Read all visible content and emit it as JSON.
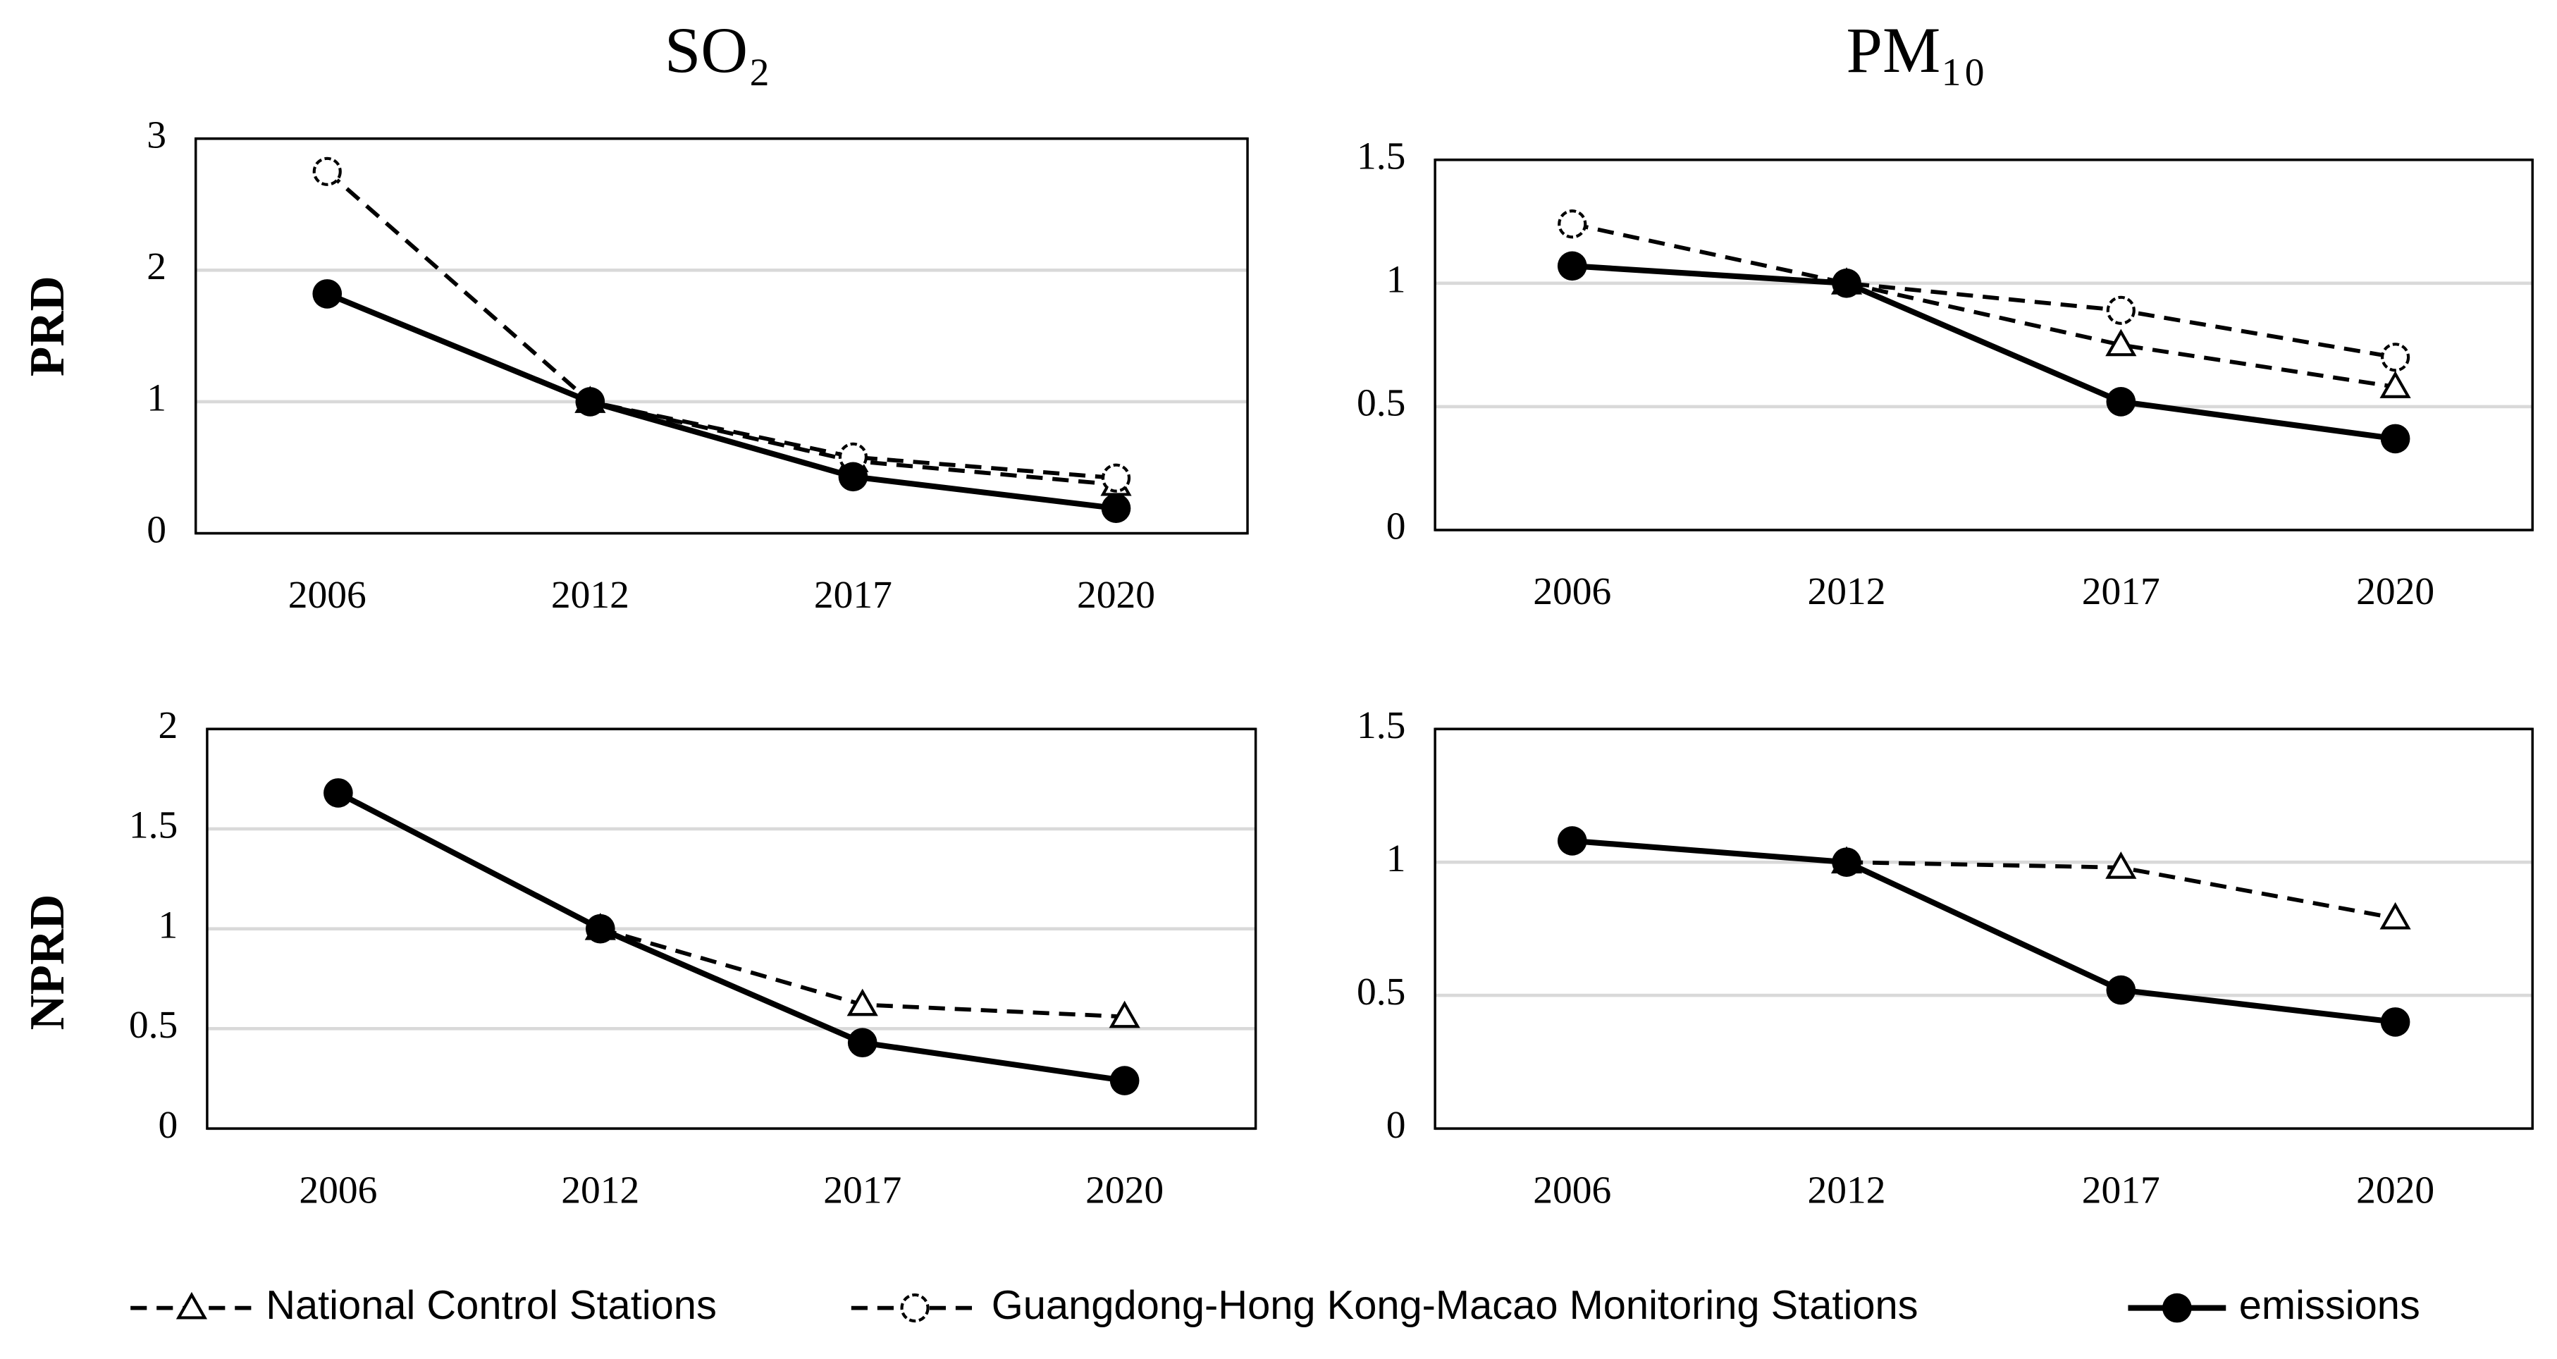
{
  "panel_titles": [
    "SO₂",
    "PM₁₀"
  ],
  "row_labels": [
    "PRD",
    "NPRD"
  ],
  "chart_data": [
    {
      "type": "line",
      "categories": [
        "2006",
        "2012",
        "2017",
        "2020"
      ],
      "ylim": [
        0,
        3
      ],
      "yticks": [
        0,
        1,
        2,
        3
      ],
      "grid": true,
      "series": [
        {
          "name": "National Control Stations",
          "color": "#000000",
          "dashed": true,
          "marker": "triangle",
          "values": [
            null,
            1,
            0.55,
            0.37
          ]
        },
        {
          "name": "Guangdong-Hong Kong-Macao Monitoring Stations",
          "color": "#000000",
          "dashed": true,
          "marker": "open-circle",
          "values": [
            2.75,
            1,
            0.58,
            0.42
          ]
        },
        {
          "name": "emissions",
          "color": "#000000",
          "dashed": false,
          "marker": "filled-circle",
          "values": [
            1.82,
            1,
            0.43,
            0.19
          ]
        }
      ]
    },
    {
      "type": "line",
      "categories": [
        "2006",
        "2012",
        "2017",
        "2020"
      ],
      "ylim": [
        0,
        1.5
      ],
      "yticks": [
        0,
        0.5,
        1,
        1.5
      ],
      "grid": true,
      "series": [
        {
          "name": "National Control Stations",
          "color": "#000000",
          "dashed": true,
          "marker": "triangle",
          "values": [
            null,
            1,
            0.75,
            0.58
          ]
        },
        {
          "name": "Guangdong-Hong Kong-Macao Monitoring Stations",
          "color": "#000000",
          "dashed": true,
          "marker": "open-circle",
          "values": [
            1.24,
            1,
            0.89,
            0.7
          ]
        },
        {
          "name": "emissions",
          "color": "#000000",
          "dashed": false,
          "marker": "filled-circle",
          "values": [
            1.07,
            1,
            0.52,
            0.37
          ]
        }
      ]
    },
    {
      "type": "line",
      "categories": [
        "2006",
        "2012",
        "2017",
        "2020"
      ],
      "ylim": [
        0,
        2
      ],
      "yticks": [
        0,
        0.5,
        1,
        1.5,
        2
      ],
      "grid": true,
      "series": [
        {
          "name": "National Control Stations",
          "color": "#000000",
          "dashed": true,
          "marker": "triangle",
          "values": [
            null,
            1,
            0.62,
            0.56
          ]
        },
        {
          "name": "emissions",
          "color": "#000000",
          "dashed": false,
          "marker": "filled-circle",
          "values": [
            1.68,
            1,
            0.43,
            0.24
          ]
        }
      ]
    },
    {
      "type": "line",
      "categories": [
        "2006",
        "2012",
        "2017",
        "2020"
      ],
      "ylim": [
        0,
        1.5
      ],
      "yticks": [
        0,
        0.5,
        1,
        1.5
      ],
      "grid": true,
      "series": [
        {
          "name": "National Control Stations",
          "color": "#000000",
          "dashed": true,
          "marker": "triangle",
          "values": [
            null,
            1,
            0.98,
            0.79
          ]
        },
        {
          "name": "emissions",
          "color": "#000000",
          "dashed": false,
          "marker": "filled-circle",
          "values": [
            1.08,
            1,
            0.52,
            0.4
          ]
        }
      ]
    }
  ]
}
